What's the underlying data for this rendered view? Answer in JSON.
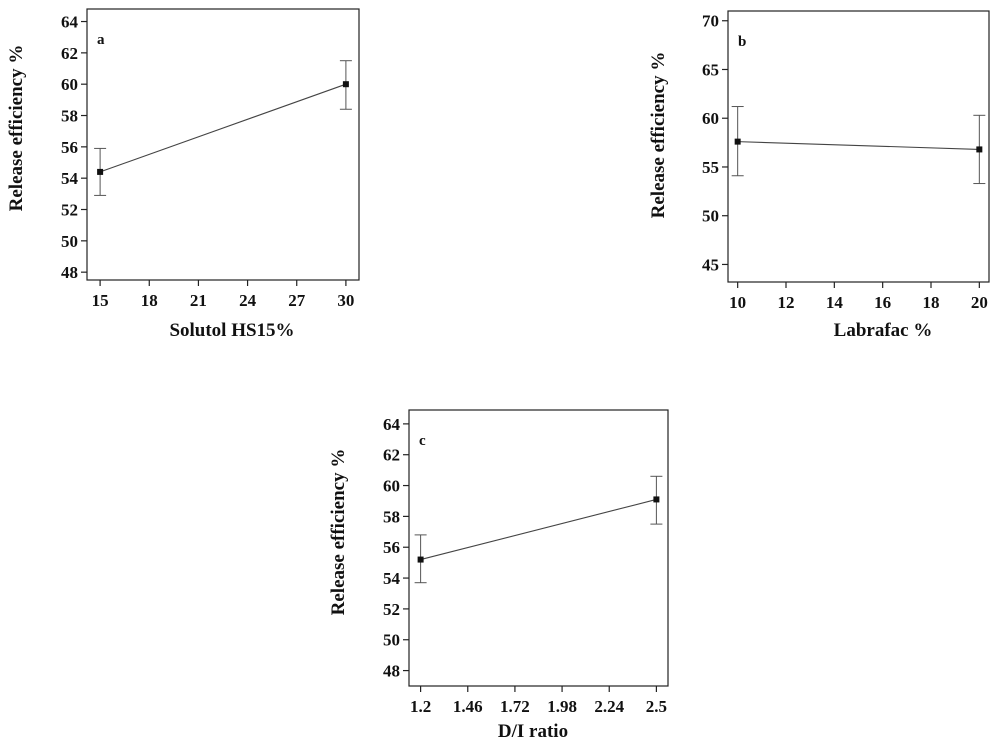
{
  "chart_data": [
    {
      "type": "line",
      "panel_label": "a",
      "xlabel": "Solutol HS15%",
      "ylabel": "Release efficiency %",
      "xlim": [
        14.2,
        30.8
      ],
      "ylim": [
        47.5,
        64.8
      ],
      "x_ticks": [
        15,
        18,
        21,
        24,
        27,
        30
      ],
      "y_ticks": [
        48,
        50,
        52,
        54,
        56,
        58,
        60,
        62,
        64
      ],
      "x_tick_labels": [
        "15",
        "18",
        "21",
        "24",
        "27",
        "30"
      ],
      "y_tick_labels": [
        "48",
        "50",
        "52",
        "54",
        "56",
        "58",
        "60",
        "62",
        "64"
      ],
      "series": [
        {
          "x": [
            15,
            30
          ],
          "y": [
            54.4,
            60.0
          ],
          "err_low": [
            52.9,
            58.4
          ],
          "err_high": [
            55.9,
            61.5
          ]
        }
      ],
      "grid": false
    },
    {
      "type": "line",
      "panel_label": "b",
      "xlabel": "Labrafac %",
      "ylabel": "Release efficiency %",
      "xlim": [
        9.6,
        20.4
      ],
      "ylim": [
        43.2,
        71.0
      ],
      "x_ticks": [
        10,
        12,
        14,
        16,
        18,
        20
      ],
      "y_ticks": [
        45,
        50,
        55,
        60,
        65,
        70
      ],
      "x_tick_labels": [
        "10",
        "12",
        "14",
        "16",
        "18",
        "20"
      ],
      "y_tick_labels": [
        "45",
        "50",
        "55",
        "60",
        "65",
        "70"
      ],
      "series": [
        {
          "x": [
            10,
            20
          ],
          "y": [
            57.6,
            56.8
          ],
          "err_low": [
            54.1,
            53.3
          ],
          "err_high": [
            61.2,
            60.3
          ]
        }
      ],
      "grid": false
    },
    {
      "type": "line",
      "panel_label": "c",
      "xlabel": "D/I ratio",
      "ylabel": "Release efficiency %",
      "xlim": [
        1.136,
        2.564
      ],
      "ylim": [
        47.0,
        64.9
      ],
      "x_ticks": [
        1.2,
        1.46,
        1.72,
        1.98,
        2.24,
        2.5
      ],
      "y_ticks": [
        48,
        50,
        52,
        54,
        56,
        58,
        60,
        62,
        64
      ],
      "x_tick_labels": [
        "1.2",
        "1.46",
        "1.72",
        "1.98",
        "2.24",
        "2.5"
      ],
      "y_tick_labels": [
        "48",
        "50",
        "52",
        "54",
        "56",
        "58",
        "60",
        "62",
        "64"
      ],
      "series": [
        {
          "x": [
            1.2,
            2.5
          ],
          "y": [
            55.2,
            59.1
          ],
          "err_low": [
            53.7,
            57.5
          ],
          "err_high": [
            56.8,
            60.6
          ]
        }
      ],
      "grid": false
    }
  ]
}
